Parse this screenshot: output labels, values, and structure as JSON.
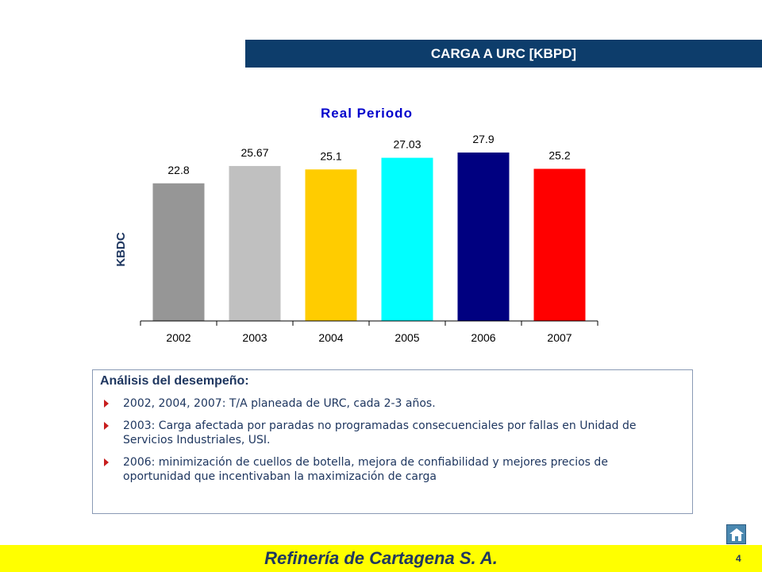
{
  "header": {
    "title": "CARGA A URC [KBPD]"
  },
  "chart_data": {
    "type": "bar",
    "title": "Real Periodo",
    "ylabel": "KBDC",
    "xlabel": "",
    "categories": [
      "2002",
      "2003",
      "2004",
      "2005",
      "2006",
      "2007"
    ],
    "values": [
      22.8,
      25.67,
      25.1,
      27.03,
      27.9,
      25.2
    ],
    "value_labels": [
      "22.8",
      "25.67",
      "25.1",
      "27.03",
      "27.9",
      "25.2"
    ],
    "colors": [
      "#969696",
      "#c0c0c0",
      "#ffcc00",
      "#00ffff",
      "#000080",
      "#ff0000"
    ],
    "ylim": [
      0,
      30
    ],
    "grid": false,
    "legend": "none"
  },
  "analysis": {
    "title": "Análisis del desempeño:",
    "items": [
      "2002, 2004, 2007: T/A planeada de URC, cada 2-3 años.",
      "2003: Carga afectada por paradas no programadas consecuenciales por fallas en Unidad de Servicios Industriales, USI.",
      "2006: minimización de cuellos de botella, mejora de confiabilidad y mejores precios de oportunidad que incentivaban la maximización de carga"
    ]
  },
  "footer": {
    "company": "Refinería de Cartagena S. A.",
    "page_number": "4"
  },
  "nav": {
    "home_icon": "home-icon"
  }
}
